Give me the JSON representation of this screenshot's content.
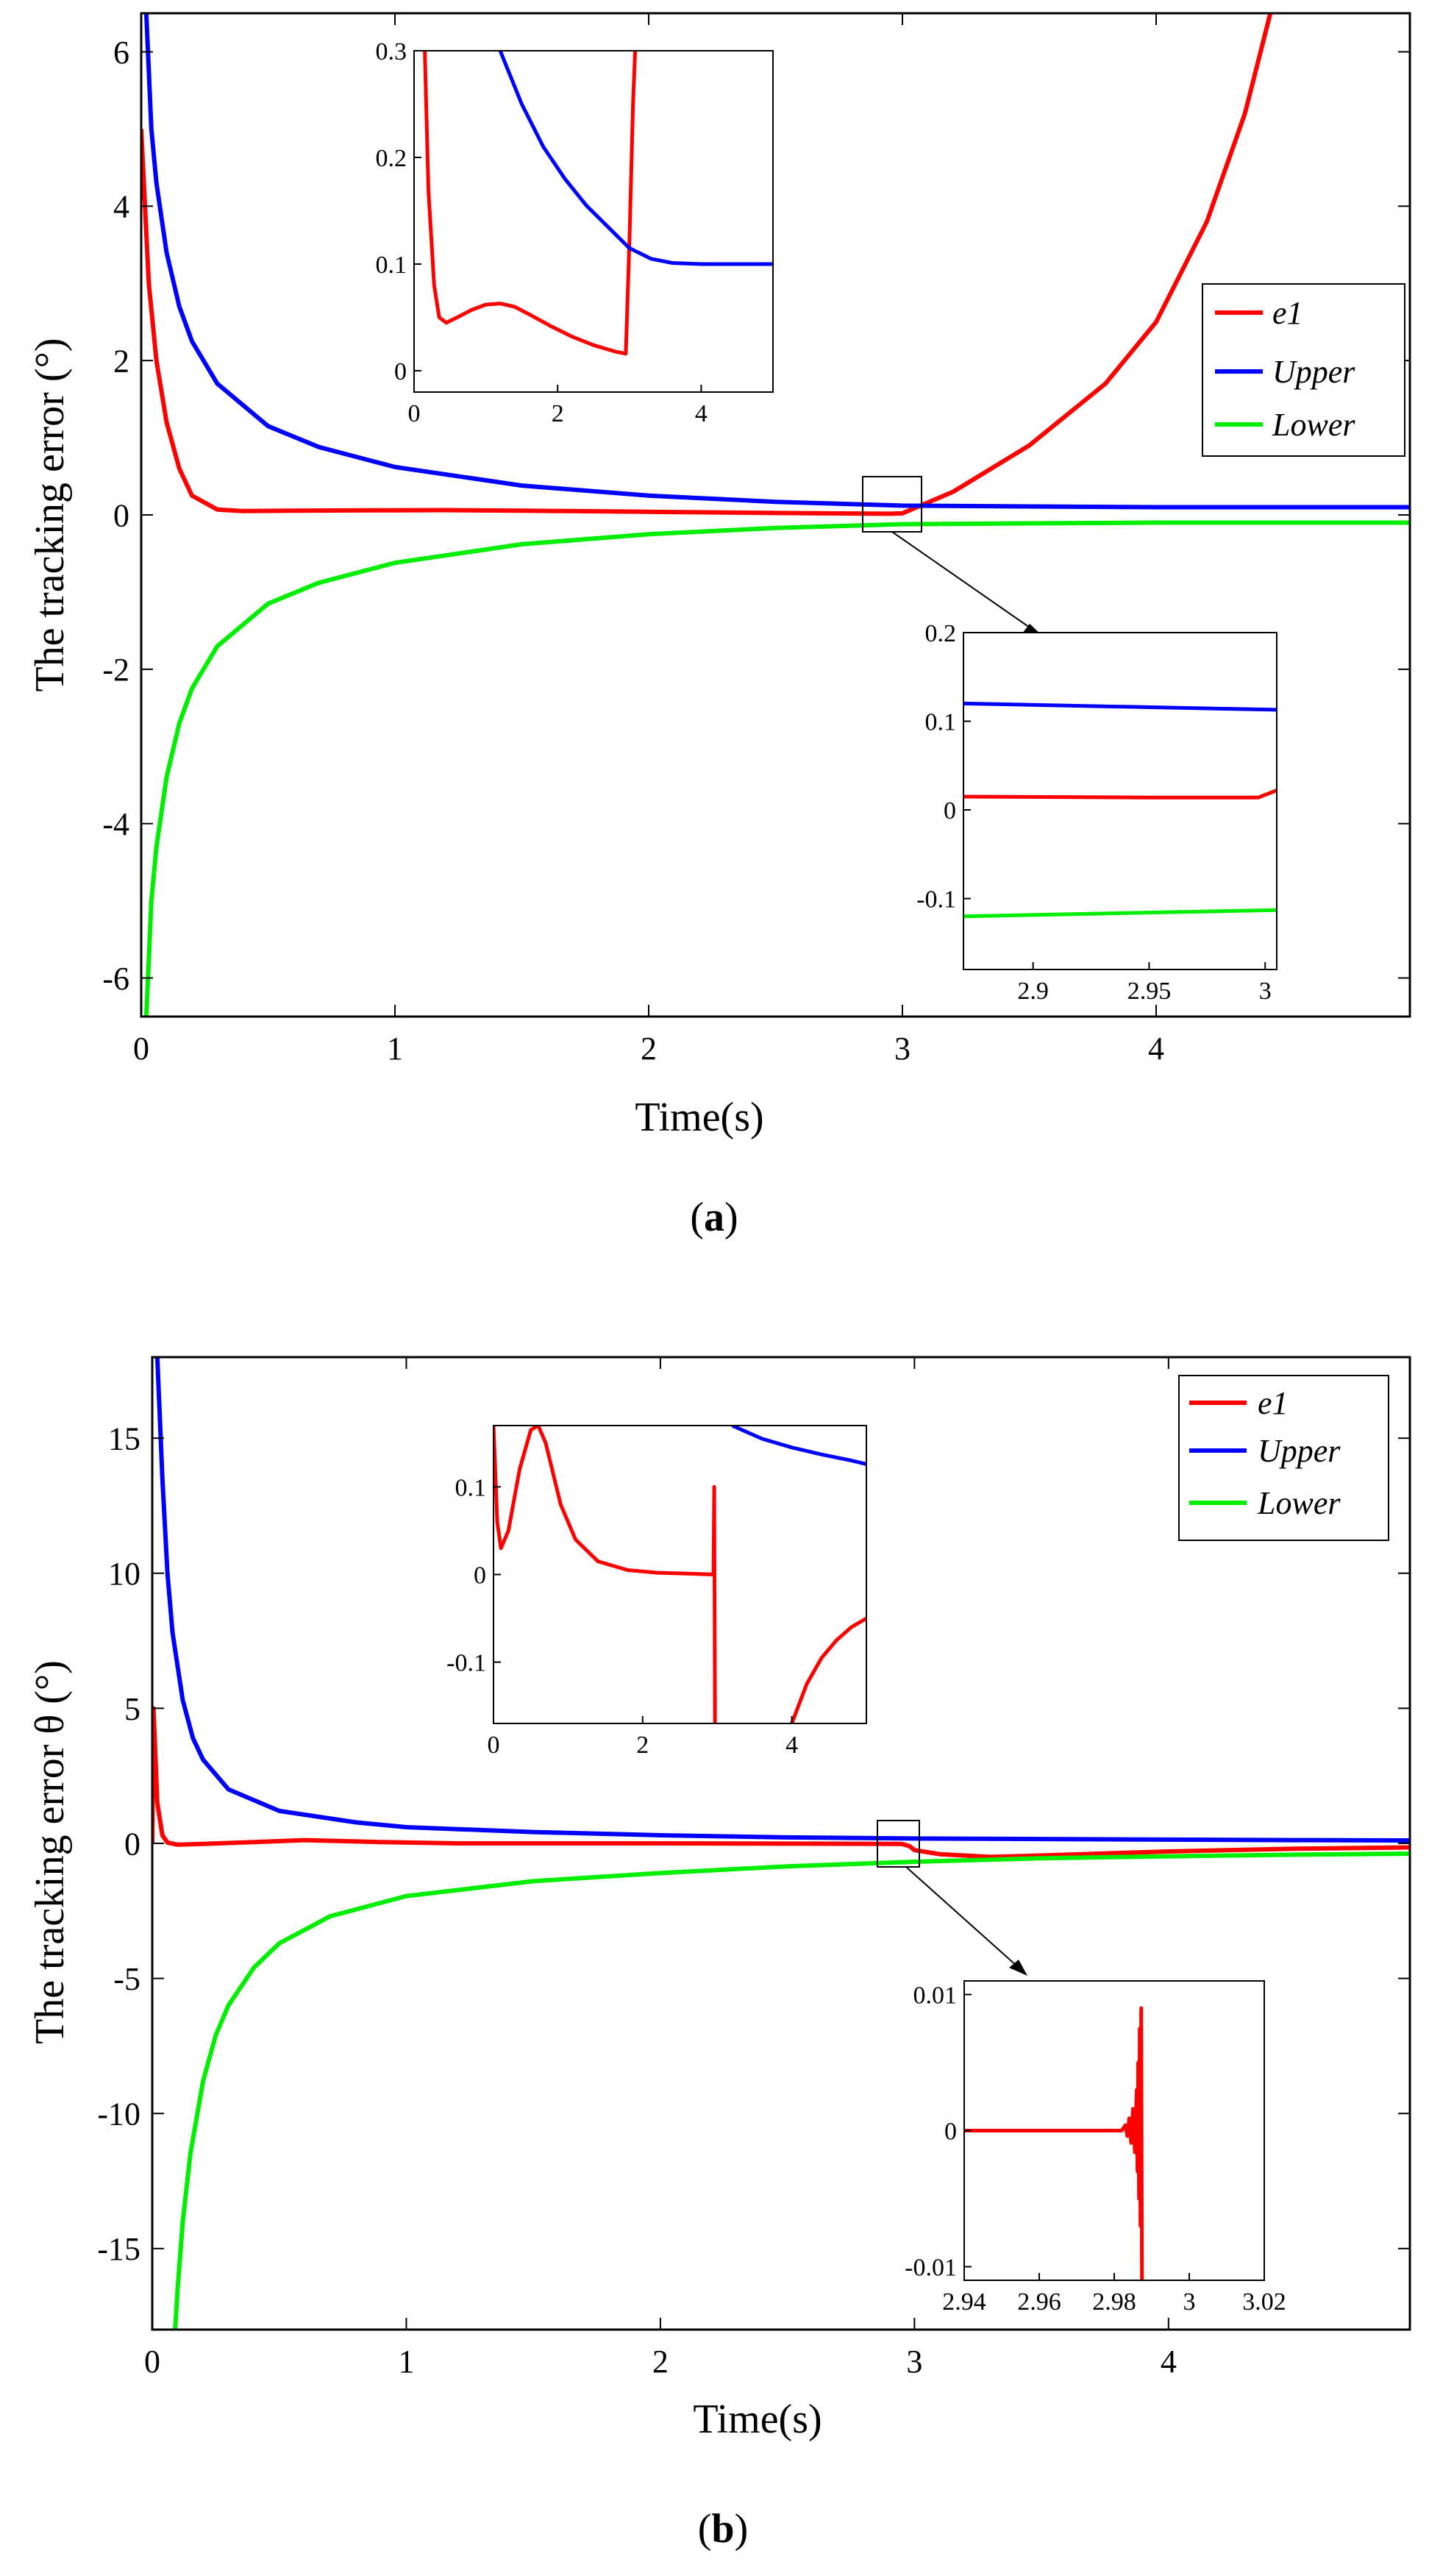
{
  "colors": {
    "e1": "#ff0000",
    "upper": "#0000ff",
    "lower": "#00ee00",
    "axis": "#000000"
  },
  "chart_data": [
    {
      "type": "line",
      "panel": "a",
      "caption_letter": "a",
      "xlabel": "Time(s)",
      "ylabel": "The tracking error (°)",
      "xlim": [
        0,
        5
      ],
      "ylim": [
        -6.5,
        6.5
      ],
      "xticks": [
        0,
        1,
        2,
        3,
        4
      ],
      "yticks": [
        -6,
        -4,
        -2,
        0,
        2,
        4,
        6
      ],
      "yticklabels": [
        "-6",
        "-4",
        "-2",
        "0",
        "2",
        "4",
        "6"
      ],
      "legend": {
        "position": "right",
        "entries": [
          "e1",
          "Upper",
          "Lower"
        ]
      },
      "series": [
        {
          "name": "e1",
          "key": "e1",
          "x": [
            0,
            0.03,
            0.06,
            0.1,
            0.15,
            0.2,
            0.3,
            0.4,
            0.6,
            1.0,
            1.2,
            1.5,
            2.0,
            2.5,
            2.95,
            3.0,
            3.2,
            3.5,
            3.8,
            4.0,
            4.2,
            4.35,
            4.45
          ],
          "values": [
            5,
            3.0,
            2.0,
            1.2,
            0.6,
            0.25,
            0.07,
            0.05,
            0.055,
            0.06,
            0.062,
            0.055,
            0.04,
            0.025,
            0.015,
            0.02,
            0.3,
            0.9,
            1.7,
            2.5,
            3.8,
            5.2,
            6.5
          ]
        },
        {
          "name": "Upper",
          "key": "upper",
          "x": [
            0.02,
            0.04,
            0.06,
            0.1,
            0.15,
            0.2,
            0.3,
            0.5,
            0.7,
            1.0,
            1.5,
            2.0,
            2.5,
            3.0,
            3.5,
            4.0,
            4.5,
            5.0
          ],
          "values": [
            6.5,
            5.0,
            4.3,
            3.4,
            2.7,
            2.25,
            1.7,
            1.15,
            0.88,
            0.62,
            0.38,
            0.25,
            0.17,
            0.12,
            0.11,
            0.1,
            0.1,
            0.1
          ]
        },
        {
          "name": "Lower",
          "key": "lower",
          "x": [
            0.02,
            0.04,
            0.06,
            0.1,
            0.15,
            0.2,
            0.3,
            0.5,
            0.7,
            1.0,
            1.5,
            2.0,
            2.5,
            3.0,
            3.5,
            4.0,
            4.5,
            5.0
          ],
          "values": [
            -6.5,
            -5.0,
            -4.3,
            -3.4,
            -2.7,
            -2.25,
            -1.7,
            -1.15,
            -0.88,
            -0.62,
            -0.38,
            -0.25,
            -0.17,
            -0.12,
            -0.11,
            -0.1,
            -0.1,
            -0.1
          ]
        }
      ],
      "insets": [
        {
          "location": "top-center",
          "xlim": [
            0,
            5
          ],
          "ylim": [
            -0.02,
            0.3
          ],
          "xticks": [
            0,
            2,
            4
          ],
          "yticks": [
            0,
            0.1,
            0.2,
            0.3
          ],
          "yticklabels": [
            "0",
            "0.1",
            "0.2",
            "0.3"
          ],
          "series": [
            {
              "name": "e1",
              "key": "e1",
              "x": [
                0.15,
                0.2,
                0.28,
                0.35,
                0.45,
                0.6,
                0.8,
                1.0,
                1.2,
                1.4,
                1.6,
                1.9,
                2.2,
                2.5,
                2.8,
                2.95,
                3.0,
                3.05,
                3.08
              ],
              "values": [
                0.3,
                0.17,
                0.08,
                0.05,
                0.045,
                0.05,
                0.057,
                0.062,
                0.063,
                0.06,
                0.053,
                0.042,
                0.032,
                0.024,
                0.018,
                0.016,
                0.12,
                0.25,
                0.3
              ]
            },
            {
              "name": "Upper",
              "key": "upper",
              "x": [
                1.2,
                1.5,
                1.8,
                2.1,
                2.4,
                2.7,
                3.0,
                3.3,
                3.6,
                4.0,
                4.5,
                5.0
              ],
              "values": [
                0.3,
                0.25,
                0.21,
                0.18,
                0.155,
                0.135,
                0.115,
                0.105,
                0.101,
                0.1,
                0.1,
                0.1
              ]
            }
          ]
        },
        {
          "location": "bottom-right",
          "xlim": [
            2.87,
            3.005
          ],
          "ylim": [
            -0.18,
            0.2
          ],
          "xticks": [
            2.9,
            2.95,
            3
          ],
          "yticks": [
            -0.1,
            0,
            0.1,
            0.2
          ],
          "xticklabels": [
            "2.9",
            "2.95",
            "3"
          ],
          "yticklabels": [
            "-0.1",
            "0",
            "0.1",
            "0.2"
          ],
          "series": [
            {
              "name": "e1",
              "key": "e1",
              "x": [
                2.87,
                2.95,
                2.997,
                3.005
              ],
              "values": [
                0.015,
                0.014,
                0.014,
                0.022
              ]
            },
            {
              "name": "Upper",
              "key": "upper",
              "x": [
                2.87,
                3.005
              ],
              "values": [
                0.12,
                0.113
              ]
            },
            {
              "name": "Lower",
              "key": "lower",
              "x": [
                2.87,
                3.005
              ],
              "values": [
                -0.12,
                -0.113
              ]
            }
          ]
        }
      ]
    },
    {
      "type": "line",
      "panel": "b",
      "caption_letter": "b",
      "xlabel": "Time(s)",
      "ylabel": "The tracking error θ (°)",
      "xlim": [
        0,
        4.95
      ],
      "ylim": [
        -18,
        18
      ],
      "xticks": [
        0,
        1,
        2,
        3,
        4
      ],
      "yticks": [
        -15,
        -10,
        -5,
        0,
        5,
        10,
        15
      ],
      "yticklabels": [
        "-15",
        "-10",
        "-5",
        "0",
        "5",
        "10",
        "15"
      ],
      "legend": {
        "position": "top-right",
        "entries": [
          "e1",
          "Upper",
          "Lower"
        ]
      },
      "series": [
        {
          "name": "e1",
          "key": "e1",
          "x": [
            0,
            0.005,
            0.02,
            0.04,
            0.06,
            0.1,
            0.2,
            0.4,
            0.6,
            0.9,
            1.2,
            2.0,
            2.95,
            2.98,
            3.0,
            3.1,
            3.3,
            3.5,
            4.0,
            4.5,
            4.95
          ],
          "values": [
            0,
            5,
            1.5,
            0.3,
            0.03,
            -0.05,
            -0.02,
            0.05,
            0.12,
            0.05,
            0.0,
            0.0,
            -0.02,
            -0.1,
            -0.25,
            -0.4,
            -0.5,
            -0.45,
            -0.3,
            -0.2,
            -0.15
          ]
        },
        {
          "name": "Upper",
          "key": "upper",
          "x": [
            0.02,
            0.04,
            0.06,
            0.08,
            0.12,
            0.16,
            0.2,
            0.3,
            0.5,
            0.8,
            1.0,
            1.5,
            2.0,
            2.5,
            3.0,
            3.5,
            4.0,
            4.5,
            4.95
          ],
          "values": [
            18,
            13.5,
            10,
            7.8,
            5.3,
            3.9,
            3.1,
            2.0,
            1.2,
            0.78,
            0.6,
            0.42,
            0.3,
            0.22,
            0.18,
            0.16,
            0.14,
            0.12,
            0.11
          ]
        },
        {
          "name": "Lower",
          "key": "lower",
          "x": [
            0.09,
            0.1,
            0.12,
            0.15,
            0.2,
            0.25,
            0.3,
            0.4,
            0.5,
            0.7,
            1.0,
            1.5,
            2.0,
            2.5,
            3.0,
            3.5,
            4.0,
            4.5,
            4.95
          ],
          "values": [
            -18,
            -16.5,
            -14,
            -11.5,
            -8.8,
            -7.1,
            -6.0,
            -4.6,
            -3.7,
            -2.7,
            -1.95,
            -1.4,
            -1.1,
            -0.85,
            -0.68,
            -0.55,
            -0.48,
            -0.42,
            -0.38
          ]
        }
      ],
      "insets": [
        {
          "location": "top-center",
          "xlim": [
            0,
            5
          ],
          "ylim": [
            -0.17,
            0.17
          ],
          "xticks": [
            0,
            2,
            4
          ],
          "yticks": [
            -0.1,
            0,
            0.1
          ],
          "yticklabels": [
            "-0.1",
            "0",
            "0.1"
          ],
          "series": [
            {
              "name": "e1",
              "key": "e1",
              "x": [
                0,
                0.05,
                0.1,
                0.2,
                0.35,
                0.5,
                0.6,
                0.7,
                0.9,
                1.1,
                1.4,
                1.8,
                2.2,
                2.6,
                2.95,
                2.96,
                2.97
              ],
              "values": [
                0.17,
                0.06,
                0.03,
                0.05,
                0.12,
                0.165,
                0.17,
                0.15,
                0.08,
                0.04,
                0.015,
                0.005,
                0.002,
                0.001,
                0.0,
                0.1,
                -0.17
              ]
            },
            {
              "name": "e1",
              "key": "e1",
              "x": [
                4.0,
                4.2,
                4.4,
                4.6,
                4.8,
                5.0
              ],
              "values": [
                -0.17,
                -0.125,
                -0.095,
                -0.075,
                -0.06,
                -0.05
              ]
            },
            {
              "name": "Upper",
              "key": "upper",
              "x": [
                3.2,
                3.6,
                4.0,
                4.4,
                4.8,
                5.0
              ],
              "values": [
                0.17,
                0.155,
                0.145,
                0.137,
                0.13,
                0.126
              ]
            }
          ]
        },
        {
          "location": "bottom-right",
          "xlim": [
            2.94,
            3.02
          ],
          "ylim": [
            -0.011,
            0.011
          ],
          "xticks": [
            2.94,
            2.96,
            2.98,
            3,
            3.02
          ],
          "yticks": [
            -0.01,
            0,
            0.01
          ],
          "xticklabels": [
            "2.94",
            "2.96",
            "2.98",
            "3",
            "3.02"
          ],
          "yticklabels": [
            "-0.01",
            "0",
            "0.01"
          ],
          "series": [
            {
              "name": "e1",
              "key": "e1",
              "x": [
                2.94,
                2.982,
                2.983,
                2.9835,
                2.984,
                2.9845,
                2.985,
                2.9855,
                2.986,
                2.9862,
                2.9864,
                2.9866,
                2.9868,
                2.987,
                2.9872,
                2.9874
              ],
              "values": [
                0.0,
                0.0,
                0.0004,
                -0.0004,
                0.0009,
                -0.0009,
                0.0016,
                -0.0016,
                0.003,
                -0.003,
                0.005,
                -0.005,
                0.0075,
                -0.007,
                0.009,
                -0.011
              ]
            }
          ]
        }
      ]
    }
  ]
}
